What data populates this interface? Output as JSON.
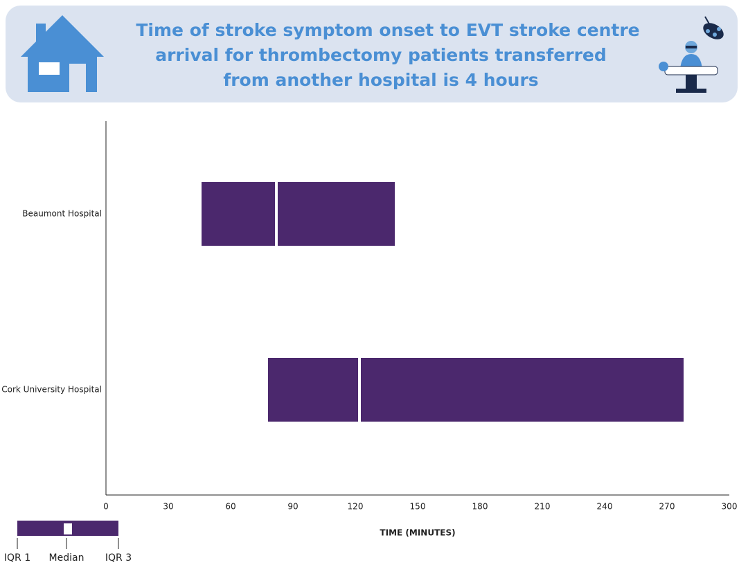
{
  "chart_data": {
    "type": "range-bar",
    "title": [
      "Time of stroke symptom onset to EVT stroke centre",
      "arrival  for thrombectomy patients transferred",
      "from another hospital is 4 hours"
    ],
    "categories": [
      "Beaumont Hospital",
      "Cork University Hospital"
    ],
    "q1": [
      46,
      78
    ],
    "median": [
      82,
      122
    ],
    "q3": [
      139,
      278
    ],
    "color": "#4b286d",
    "median_color": "#ffffff",
    "xlim": [
      0,
      300
    ],
    "xticks": [
      0,
      30,
      60,
      90,
      120,
      150,
      180,
      210,
      240,
      270,
      300
    ],
    "xlabel": "TIME (MINUTES)",
    "legend": [
      "IQR 1",
      "Median",
      "IQR 3"
    ]
  }
}
